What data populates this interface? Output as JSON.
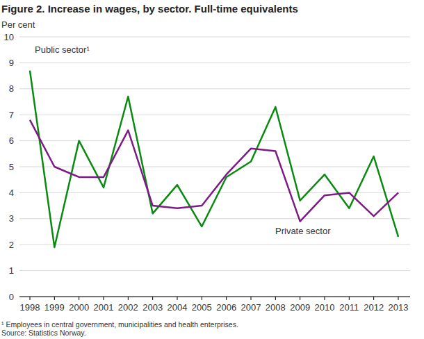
{
  "chart_data": {
    "type": "line",
    "title": "Figure 2. Increase in wages, by sector. Full-time equivalents",
    "y_label": "Per cent",
    "categories": [
      "1998",
      "1999",
      "2000",
      "2001",
      "2002",
      "2003",
      "2004",
      "2005",
      "2006",
      "2007",
      "2008",
      "2009",
      "2010",
      "2011",
      "2012",
      "2013"
    ],
    "series": [
      {
        "name": "Public sector¹",
        "color": "#0b8a12",
        "values": [
          8.7,
          1.9,
          6.0,
          4.2,
          7.7,
          3.2,
          4.3,
          2.7,
          4.6,
          5.2,
          7.3,
          3.7,
          4.7,
          3.4,
          5.4,
          2.3
        ]
      },
      {
        "name": "Private sector",
        "color": "#7d1b86",
        "values": [
          6.8,
          5.0,
          4.6,
          4.6,
          6.4,
          3.5,
          3.4,
          3.5,
          4.7,
          5.7,
          5.6,
          2.9,
          3.9,
          4.0,
          3.1,
          4.0
        ]
      }
    ],
    "ylim": [
      0,
      10
    ],
    "yticks": [
      0,
      1,
      2,
      3,
      4,
      5,
      6,
      7,
      8,
      9,
      10
    ],
    "grid": true,
    "notes": [
      "¹ Employees in central government, municipalities and health enterprises.",
      "Source: Statistics Norway."
    ]
  }
}
